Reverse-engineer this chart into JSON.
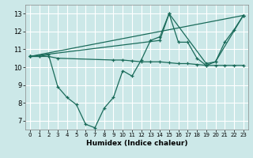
{
  "xlabel": "Humidex (Indice chaleur)",
  "bg_color": "#cce8e8",
  "grid_color": "#ffffff",
  "line_color": "#1a6b5a",
  "xlim": [
    -0.5,
    23.5
  ],
  "ylim": [
    6.5,
    13.5
  ],
  "xticks": [
    0,
    1,
    2,
    3,
    4,
    5,
    6,
    7,
    8,
    9,
    10,
    11,
    12,
    13,
    14,
    15,
    16,
    17,
    18,
    19,
    20,
    21,
    22,
    23
  ],
  "yticks": [
    7,
    8,
    9,
    10,
    11,
    12,
    13
  ],
  "series": [
    {
      "x": [
        0,
        1,
        2,
        3,
        4,
        5,
        6,
        7,
        8,
        9,
        10,
        11,
        12,
        13,
        14,
        15,
        16,
        17,
        18,
        19,
        20,
        21,
        22,
        23
      ],
      "y": [
        10.6,
        10.6,
        10.7,
        8.9,
        8.3,
        7.9,
        6.8,
        6.6,
        7.7,
        8.3,
        9.8,
        9.5,
        10.4,
        11.5,
        11.7,
        13.0,
        11.4,
        11.4,
        10.5,
        10.1,
        10.3,
        11.4,
        12.1,
        12.9
      ]
    },
    {
      "x": [
        0,
        1,
        2,
        3,
        9,
        10,
        11,
        12,
        13,
        14,
        15,
        16,
        17,
        18,
        19,
        20,
        21,
        22,
        23
      ],
      "y": [
        10.6,
        10.6,
        10.6,
        10.5,
        10.4,
        10.4,
        10.35,
        10.3,
        10.3,
        10.3,
        10.25,
        10.2,
        10.2,
        10.15,
        10.1,
        10.1,
        10.1,
        10.1,
        10.1
      ]
    },
    {
      "x": [
        0,
        23
      ],
      "y": [
        10.6,
        12.9
      ]
    },
    {
      "x": [
        0,
        14,
        15,
        19,
        20,
        23
      ],
      "y": [
        10.6,
        11.5,
        13.0,
        10.2,
        10.3,
        12.9
      ]
    }
  ]
}
